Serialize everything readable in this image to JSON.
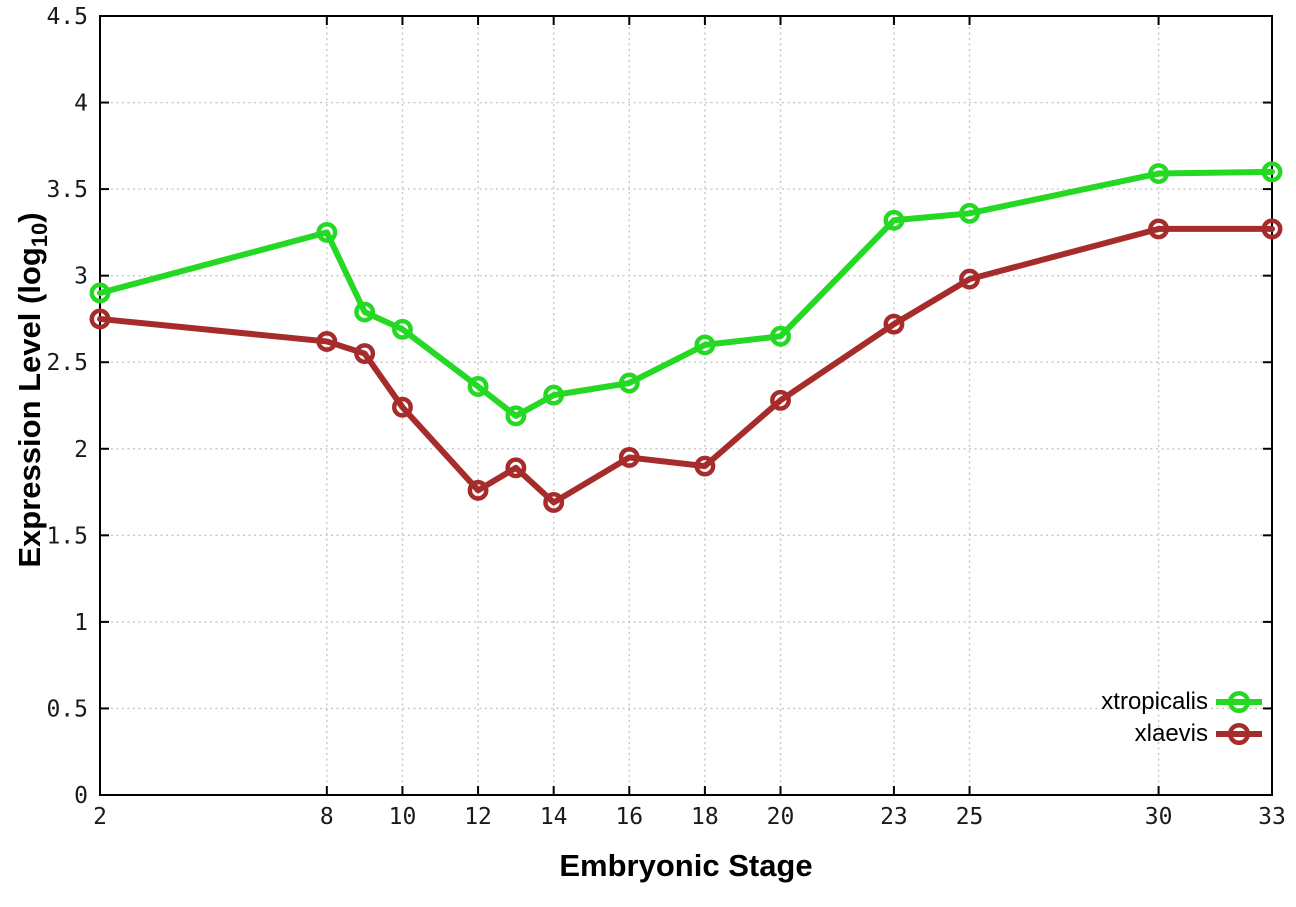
{
  "figure": {
    "background": "#ffffff",
    "xlabel": "Embryonic Stage",
    "ylabel_pre": "Expression Level (log",
    "ylabel_sub": "10",
    "ylabel_post": ")"
  },
  "chart_data": {
    "type": "line",
    "title": "",
    "xlabel": "Embryonic Stage",
    "ylabel": "Expression Level (log10)",
    "x": [
      2,
      8,
      9,
      10,
      12,
      13,
      14,
      16,
      18,
      20,
      23,
      25,
      30,
      33
    ],
    "series": [
      {
        "name": "xtropicalis",
        "color": "#24d824",
        "values": [
          2.9,
          3.25,
          2.79,
          2.69,
          2.36,
          2.19,
          2.31,
          2.38,
          2.6,
          2.65,
          3.32,
          3.36,
          3.59,
          3.6
        ]
      },
      {
        "name": "xlaevis",
        "color": "#a62c2c",
        "values": [
          2.75,
          2.62,
          2.55,
          2.24,
          1.76,
          1.89,
          1.69,
          1.95,
          1.9,
          2.28,
          2.72,
          2.98,
          3.27,
          3.27
        ]
      }
    ],
    "xlim": [
      2,
      33
    ],
    "ylim": [
      0,
      4.5
    ],
    "x_ticks": [
      2,
      8,
      10,
      12,
      14,
      16,
      18,
      20,
      23,
      25,
      30,
      33
    ],
    "x_tick_labels": [
      "2",
      "8",
      "10",
      "12",
      "14",
      "16",
      "18",
      "20",
      "23",
      "25",
      "30",
      "33"
    ],
    "y_ticks": [
      0,
      0.5,
      1,
      1.5,
      2,
      2.5,
      3,
      3.5,
      4,
      4.5
    ],
    "y_tick_labels": [
      "0",
      "0.5",
      "1",
      "1.5",
      "2",
      "2.5",
      "3",
      "3.5",
      "4",
      "4.5"
    ],
    "grid": true,
    "grid_color": "#c6c6c6",
    "border_color": "#000000",
    "tick_label_color": "#1a1a1a",
    "marker": "open-circle",
    "line_width": 6,
    "legend_position": "bottom-right"
  }
}
